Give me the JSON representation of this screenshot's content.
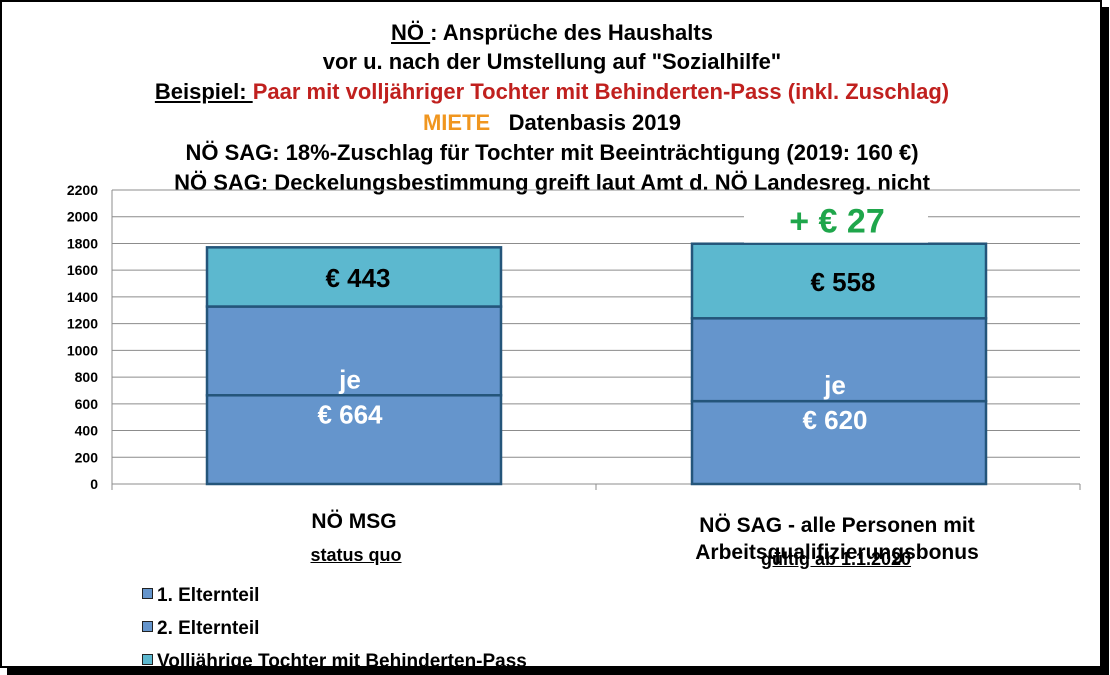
{
  "title": {
    "line1_a": "NÖ ",
    "line1_b": ": Ansprüche des Haushalts",
    "line2": "vor u. nach der Umstellung auf \"Sozialhilfe\"",
    "line3_label": "Beispiel: ",
    "line3_text": "Paar  mit volljähriger Tochter mit Behinderten-Pass (inkl. Zuschlag)",
    "line4_a": "MIETE",
    "line4_b": "Datenbasis 2019",
    "line5": "NÖ SAG: 18%-Zuschlag für Tochter mit Beeinträchtigung (2019: 160 €)",
    "line6": "NÖ SAG: Deckelungsbestimmung greift laut Amt d. NÖ Landesreg. nicht"
  },
  "chart_data": {
    "type": "bar",
    "stacked": true,
    "categories": [
      "NÖ MSG",
      "NÖ SAG - alle Personen mit Arbeitsqualifizierungsbonus"
    ],
    "category_sublabels": [
      "status quo",
      "gültig  ab  1.1.2020"
    ],
    "series": [
      {
        "name": "1. Elternteil",
        "values": [
          664,
          620
        ],
        "color": "#6595cc"
      },
      {
        "name": "2. Elternteil",
        "values": [
          664,
          620
        ],
        "color": "#6595cc"
      },
      {
        "name": "Volljährige Tochter mit Behinderten-Pass",
        "values": [
          443,
          558
        ],
        "color": "#5cb8cf"
      }
    ],
    "data_labels": {
      "parents": [
        [
          "je",
          "€ 664"
        ],
        [
          "je",
          "€ 620"
        ]
      ],
      "daughter": [
        "€ 443",
        "€ 558"
      ]
    },
    "annotation": "+ € 27",
    "annotation_color": "#1fa64b",
    "ylim": [
      0,
      2200
    ],
    "yticks": [
      0,
      200,
      400,
      600,
      800,
      1000,
      1200,
      1400,
      1600,
      1800,
      2000,
      2200
    ],
    "grid": true,
    "legend_position": "bottom-left"
  }
}
